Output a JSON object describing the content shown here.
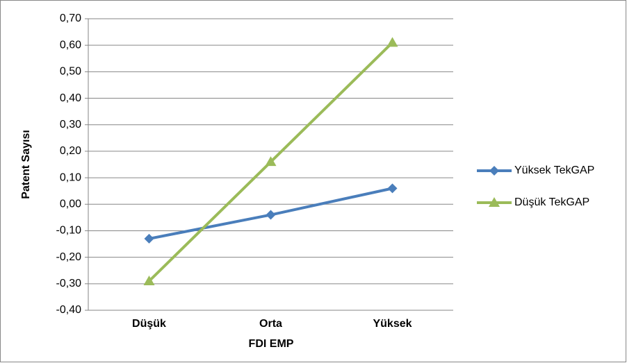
{
  "chart_data": {
    "type": "line",
    "x_label": "FDI EMP",
    "y_label": "Patent Sayısı",
    "categories": [
      "Düşük",
      "Orta",
      "Yüksek"
    ],
    "series": [
      {
        "name": "Yüksek TekGAP",
        "color": "#4a7ebb",
        "marker": "diamond",
        "values": [
          -0.13,
          -0.04,
          0.06
        ]
      },
      {
        "name": "Düşük TekGAP",
        "color": "#9bbb59",
        "marker": "triangle",
        "values": [
          -0.29,
          0.16,
          0.61
        ]
      }
    ],
    "ylim": [
      -0.4,
      0.7
    ],
    "yticks": [
      {
        "value": -0.4,
        "label": "-0,40"
      },
      {
        "value": -0.3,
        "label": "-0,30"
      },
      {
        "value": -0.2,
        "label": "-0,20"
      },
      {
        "value": -0.1,
        "label": "-0,10"
      },
      {
        "value": 0,
        "label": "0,00"
      },
      {
        "value": 0.1,
        "label": "0,10"
      },
      {
        "value": 0.2,
        "label": "0,20"
      },
      {
        "value": 0.3,
        "label": "0,30"
      },
      {
        "value": 0.4,
        "label": "0,40"
      },
      {
        "value": 0.5,
        "label": "0,50"
      },
      {
        "value": 0.6,
        "label": "0,60"
      },
      {
        "value": 0.7,
        "label": "0,70"
      }
    ],
    "grid": true,
    "legend": "right"
  }
}
